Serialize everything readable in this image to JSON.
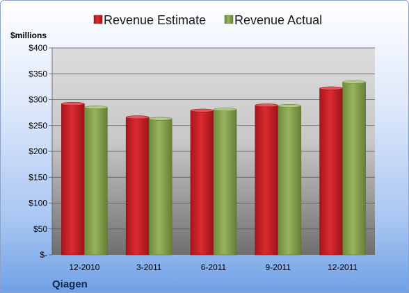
{
  "chart_data": {
    "type": "bar",
    "categories": [
      "12-2010",
      "3-2011",
      "6-2011",
      "9-2011",
      "12-2011"
    ],
    "series": [
      {
        "name": "Revenue Estimate",
        "color": "#cc2229",
        "values": [
          292,
          266,
          279,
          289,
          322
        ]
      },
      {
        "name": "Revenue Actual",
        "color": "#8caa52",
        "values": [
          285,
          263,
          281,
          288,
          334
        ]
      }
    ],
    "unit_label": "$millions",
    "ylim": [
      0,
      400
    ],
    "yticks": [
      0,
      50,
      100,
      150,
      200,
      250,
      300,
      350,
      400
    ],
    "ytick_labels": [
      "$-",
      "$50",
      "$100",
      "$150",
      "$200",
      "$250",
      "$300",
      "$350",
      "$400"
    ],
    "grid": true,
    "legend_position": "top"
  },
  "company": "Qiagen"
}
